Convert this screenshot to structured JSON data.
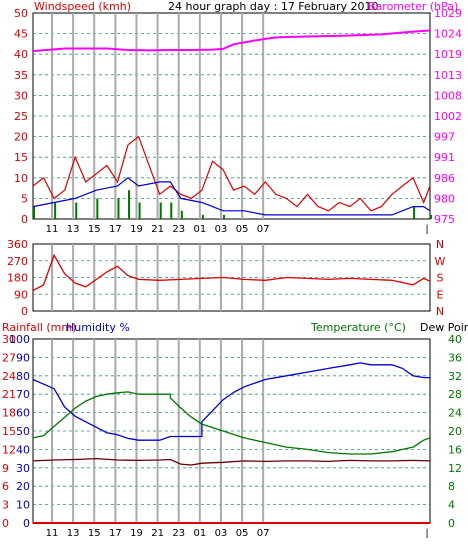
{
  "header": {
    "left_label": "Windspeed (kmh)",
    "center_label": "24 hour graph day : 17 February 2010",
    "right_label": "Barometer (hPa)"
  },
  "colors": {
    "grid_v": "#aaaaaa",
    "grid_h": "#3a8a8a",
    "frame": "#000000",
    "red": "#dd0000",
    "blue": "#0000cc",
    "green": "#007700",
    "magenta": "#ff00ff",
    "darkred": "#660000"
  },
  "x_ticks": [
    "11",
    "13",
    "15",
    "17",
    "19",
    "21",
    "23",
    "01",
    "03",
    "05",
    "07"
  ],
  "x_end_tick": "|",
  "chart_data": [
    {
      "type": "line",
      "panel": "wind-barometer",
      "ylabel": "Windspeed (kmh)",
      "y2label": "Barometer (hPa)",
      "yticks": [
        "0",
        "5",
        "10",
        "15",
        "20",
        "25",
        "30",
        "35",
        "40",
        "45",
        "50"
      ],
      "y2ticks": [
        "975",
        "980",
        "986",
        "991",
        "997",
        "1002",
        "1008",
        "1013",
        "1019",
        "1024",
        "1029"
      ],
      "ylim": [
        0,
        50
      ],
      "y2lim": [
        975,
        1029
      ],
      "grid": true,
      "series": [
        {
          "role": "barometer",
          "color": "magenta",
          "points": [
            [
              0,
              1019
            ],
            [
              3,
              1019.7
            ],
            [
              7,
              1019.7
            ],
            [
              9,
              1019.3
            ],
            [
              11,
              1019.2
            ],
            [
              13,
              1019.3
            ],
            [
              15,
              1019.3
            ],
            [
              17,
              1019.4
            ],
            [
              18,
              1019.6
            ],
            [
              19,
              1020.8
            ],
            [
              21,
              1021.8
            ],
            [
              23,
              1022.6
            ],
            [
              25,
              1022.8
            ],
            [
              27,
              1022.9
            ],
            [
              29,
              1023.0
            ],
            [
              31,
              1023.2
            ],
            [
              33,
              1023.4
            ],
            [
              35,
              1023.9
            ],
            [
              37,
              1024.3
            ],
            [
              37.6,
              1024.4
            ]
          ]
        },
        {
          "role": "wind-gust",
          "color": "red",
          "points": [
            [
              0,
              8
            ],
            [
              1,
              10
            ],
            [
              2,
              5
            ],
            [
              3,
              7
            ],
            [
              4,
              15
            ],
            [
              5,
              9
            ],
            [
              6,
              11
            ],
            [
              7,
              13
            ],
            [
              8,
              9
            ],
            [
              9,
              18
            ],
            [
              10,
              20
            ],
            [
              11,
              13
            ],
            [
              12,
              6
            ],
            [
              13,
              8
            ],
            [
              14,
              6
            ],
            [
              15,
              5
            ],
            [
              16,
              7
            ],
            [
              17,
              14
            ],
            [
              18,
              12
            ],
            [
              19,
              7
            ],
            [
              20,
              8
            ],
            [
              21,
              6
            ],
            [
              22,
              9
            ],
            [
              23,
              6
            ],
            [
              24,
              5
            ],
            [
              25,
              3
            ],
            [
              26,
              6
            ],
            [
              27,
              3
            ],
            [
              28,
              2
            ],
            [
              29,
              4
            ],
            [
              30,
              3
            ],
            [
              31,
              5
            ],
            [
              32,
              2
            ],
            [
              33,
              3
            ],
            [
              34,
              6
            ],
            [
              35,
              8
            ],
            [
              36,
              10
            ],
            [
              37,
              4
            ],
            [
              37.6,
              8
            ]
          ]
        },
        {
          "role": "wind-average",
          "color": "blue",
          "points": [
            [
              0,
              3
            ],
            [
              2,
              4
            ],
            [
              4,
              5
            ],
            [
              6,
              7
            ],
            [
              8,
              8
            ],
            [
              9,
              10
            ],
            [
              10,
              8
            ],
            [
              12,
              9
            ],
            [
              13,
              9
            ],
            [
              14,
              5
            ],
            [
              16,
              4
            ],
            [
              17,
              3
            ],
            [
              18,
              2
            ],
            [
              20,
              2
            ],
            [
              22,
              1
            ],
            [
              24,
              1
            ],
            [
              28,
              1
            ],
            [
              34,
              1
            ],
            [
              36,
              3
            ],
            [
              37,
              3
            ],
            [
              37.6,
              2
            ]
          ]
        },
        {
          "role": "wind-calm-bars",
          "color": "green",
          "points": [
            [
              0,
              3
            ],
            [
              2,
              4
            ],
            [
              4,
              4
            ],
            [
              6,
              5
            ],
            [
              8,
              5
            ],
            [
              9,
              7
            ],
            [
              10,
              4
            ],
            [
              12,
              4
            ],
            [
              13,
              4
            ],
            [
              14,
              2
            ],
            [
              16,
              1
            ],
            [
              18,
              1
            ],
            [
              36,
              3
            ],
            [
              37.6,
              1
            ]
          ]
        }
      ]
    },
    {
      "type": "line",
      "panel": "wind-direction",
      "yticks": [
        "360",
        "270",
        "180",
        "90",
        "0"
      ],
      "y2ticks": [
        "N",
        "W",
        "S",
        "E",
        "N"
      ],
      "ylim": [
        0,
        360
      ],
      "grid": true,
      "series": [
        {
          "role": "direction",
          "color": "red",
          "points": [
            [
              0,
              110
            ],
            [
              1,
              140
            ],
            [
              2,
              300
            ],
            [
              3,
              200
            ],
            [
              4,
              150
            ],
            [
              5,
              130
            ],
            [
              6,
              170
            ],
            [
              7,
              210
            ],
            [
              8,
              240
            ],
            [
              9,
              190
            ],
            [
              10,
              170
            ],
            [
              12,
              165
            ],
            [
              14,
              170
            ],
            [
              16,
              175
            ],
            [
              18,
              180
            ],
            [
              20,
              170
            ],
            [
              22,
              165
            ],
            [
              24,
              180
            ],
            [
              26,
              175
            ],
            [
              28,
              170
            ],
            [
              30,
              175
            ],
            [
              32,
              170
            ],
            [
              34,
              165
            ],
            [
              36,
              140
            ],
            [
              37,
              175
            ],
            [
              37.6,
              160
            ]
          ]
        }
      ]
    },
    {
      "type": "line",
      "panel": "rain-humidity-temperature",
      "ylabel_left_1": "Rainfall (mm)",
      "ylabel_left_2": "Humidity %",
      "ylabel_right_1": "Temperature (°C)",
      "ylabel_right_2": "Dew Point",
      "y_rain_ticks": [
        "30",
        "27",
        "24",
        "21",
        "18",
        "15",
        "12",
        "9",
        "6",
        "3",
        "0"
      ],
      "y_humidity_ticks": [
        "100",
        "90",
        "80",
        "70",
        "60",
        "50",
        "40",
        "30",
        "20",
        "10",
        "0"
      ],
      "y_temp_ticks": [
        "40",
        "36",
        "32",
        "28",
        "24",
        "20",
        "16",
        "12",
        "8",
        "4",
        "0"
      ],
      "ylim_rain": [
        0,
        30
      ],
      "ylim_humidity": [
        0,
        100
      ],
      "ylim_temp": [
        0,
        40
      ],
      "grid": true,
      "series": [
        {
          "role": "humidity",
          "color": "blue",
          "points": [
            [
              0,
              78
            ],
            [
              2,
              73
            ],
            [
              3,
              63
            ],
            [
              4,
              58
            ],
            [
              5,
              55
            ],
            [
              6,
              52
            ],
            [
              7,
              49
            ],
            [
              8,
              48
            ],
            [
              9,
              46
            ],
            [
              10,
              45
            ],
            [
              12,
              45
            ],
            [
              13,
              47
            ],
            [
              16,
              47
            ],
            [
              16,
              55
            ],
            [
              17,
              61
            ],
            [
              18,
              67
            ],
            [
              19,
              71
            ],
            [
              20,
              74
            ],
            [
              22,
              78
            ],
            [
              24,
              80
            ],
            [
              26,
              82
            ],
            [
              28,
              84
            ],
            [
              30,
              86
            ],
            [
              31,
              87
            ],
            [
              32,
              86
            ],
            [
              34,
              86
            ],
            [
              35,
              84
            ],
            [
              36,
              80
            ],
            [
              37,
              79
            ],
            [
              37.6,
              79
            ]
          ]
        },
        {
          "role": "temperature",
          "color": "green",
          "points": [
            [
              0,
              18.5
            ],
            [
              1,
              19
            ],
            [
              2,
              21
            ],
            [
              3,
              23
            ],
            [
              4,
              25
            ],
            [
              5,
              26.5
            ],
            [
              6,
              27.5
            ],
            [
              7,
              28
            ],
            [
              8,
              28.3
            ],
            [
              9,
              28.5
            ],
            [
              10,
              28
            ],
            [
              12,
              28
            ],
            [
              13,
              28
            ],
            [
              13,
              27.2
            ],
            [
              14,
              25
            ],
            [
              15,
              23
            ],
            [
              16,
              21.5
            ],
            [
              18,
              20
            ],
            [
              20,
              18.5
            ],
            [
              22,
              17.5
            ],
            [
              24,
              16.5
            ],
            [
              26,
              16
            ],
            [
              28,
              15.3
            ],
            [
              30,
              15
            ],
            [
              32,
              15
            ],
            [
              34,
              15.5
            ],
            [
              35,
              16
            ],
            [
              36,
              16.5
            ],
            [
              37,
              18
            ],
            [
              37.6,
              18.5
            ]
          ]
        },
        {
          "role": "dew-point",
          "color": "darkred",
          "points": [
            [
              0,
              13.5
            ],
            [
              2,
              13.7
            ],
            [
              4,
              13.8
            ],
            [
              6,
              14
            ],
            [
              8,
              13.7
            ],
            [
              10,
              13.6
            ],
            [
              12,
              13.7
            ],
            [
              13,
              13.8
            ],
            [
              14,
              12.8
            ],
            [
              15,
              12.6
            ],
            [
              16,
              13
            ],
            [
              18,
              13.2
            ],
            [
              20,
              13.5
            ],
            [
              22,
              13.4
            ],
            [
              24,
              13.5
            ],
            [
              26,
              13.5
            ],
            [
              28,
              13.4
            ],
            [
              30,
              13.6
            ],
            [
              32,
              13.5
            ],
            [
              34,
              13.5
            ],
            [
              36,
              13.6
            ],
            [
              37.6,
              13.5
            ]
          ]
        },
        {
          "role": "rainfall",
          "color": "red",
          "points": [
            [
              0,
              0
            ],
            [
              37.6,
              0
            ]
          ]
        }
      ]
    }
  ]
}
